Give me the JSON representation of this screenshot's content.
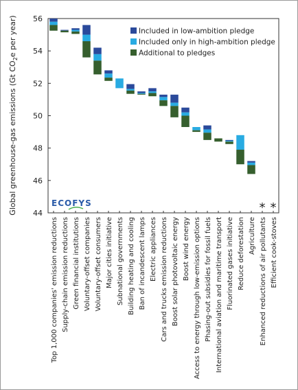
{
  "chart_data": {
    "type": "waterfall",
    "ylabel": [
      "Global greenhouse-gas emissions (Gt CO",
      "2",
      "e per year)"
    ],
    "logo": "ECOFYS",
    "categories": [
      "Top 1,000 companies' emission reductions",
      "Supply-chain emission reductions",
      "Green financial institutions",
      "Voluntary-offset companies",
      "Voluntary-offset consumers",
      "Major cities initiative",
      "Subnational governments",
      "Building heating and cooling",
      "Ban of incandescent lamps",
      "Electric appliances",
      "Cars and trucks emission reductions",
      "Boost solar photovoltaic energy",
      "Boost wind energy",
      "Access to energy through low-emission options",
      "Phasing-out subsidies for fossil fuels",
      "International aviation and maritime transport",
      "Fluorinated gases initiative",
      "Reduce deforestation",
      "Agriculture",
      "Enhanced reductions of air pollutants",
      "Efficient cook-stoves"
    ],
    "start": [
      56.0,
      55.3,
      55.4,
      55.6,
      54.2,
      52.8,
      52.3,
      51.95,
      51.5,
      51.7,
      51.3,
      51.3,
      50.5,
      49.3,
      49.4,
      48.6,
      48.5,
      48.8,
      47.2,
      null,
      null
    ],
    "series": [
      {
        "name": "Included in low-ambition pledge",
        "color": "#2b4a9b",
        "values": [
          0.2,
          0.05,
          0.1,
          0.6,
          0.4,
          0.2,
          0,
          0.3,
          0.1,
          0.2,
          0.15,
          0.5,
          0.3,
          0,
          0.25,
          0,
          0.05,
          0,
          0.1,
          null,
          null
        ]
      },
      {
        "name": "Included only in high-ambition pledge",
        "color": "#29abe2",
        "values": [
          0.2,
          0,
          0.1,
          0.4,
          0.4,
          0.25,
          0.6,
          0.1,
          0.05,
          0.1,
          0.2,
          0.2,
          0.2,
          0.2,
          0.2,
          0,
          0.05,
          0.9,
          0.15,
          null,
          null
        ]
      },
      {
        "name": "Additional to pledges",
        "color": "#365f2e",
        "values": [
          0.35,
          0.1,
          0.15,
          1.0,
          0.85,
          0.2,
          0,
          0.2,
          0.05,
          0.2,
          0.35,
          0.7,
          0.7,
          0.1,
          0.45,
          0.2,
          0.15,
          0.9,
          0.55,
          null,
          null
        ]
      }
    ],
    "marks": [
      null,
      null,
      null,
      null,
      null,
      null,
      null,
      null,
      null,
      null,
      null,
      null,
      null,
      null,
      null,
      null,
      null,
      null,
      null,
      "*",
      "*"
    ],
    "ylim": [
      44,
      56
    ],
    "yticks": [
      44,
      46,
      48,
      50,
      52,
      54,
      56
    ],
    "legend": "upper right"
  }
}
